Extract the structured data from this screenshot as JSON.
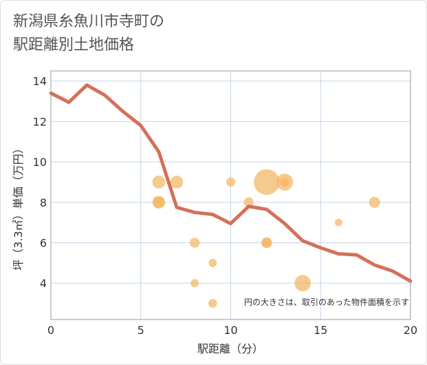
{
  "title_line1": "新潟県糸魚川市寺町の",
  "title_line2": "駅距離別土地価格",
  "chart_data": {
    "type": "scatter",
    "title": "新潟県糸魚川市寺町の駅距離別土地価格",
    "xlabel": "駅距離（分）",
    "ylabel": "坪（3.3㎡）単価（万円）",
    "xlim": [
      0,
      20
    ],
    "ylim": [
      2.2,
      14.5
    ],
    "xticks": [
      0,
      5,
      10,
      15,
      20
    ],
    "yticks": [
      4,
      6,
      8,
      10,
      12,
      14
    ],
    "grid": true,
    "note": "円の大きさは、取引のあった物件面積を示す",
    "bubbles": [
      {
        "x": 6,
        "y": 9,
        "size": 2
      },
      {
        "x": 6,
        "y": 8,
        "size": 2
      },
      {
        "x": 6,
        "y": 8,
        "size": 1.5
      },
      {
        "x": 7,
        "y": 9,
        "size": 2
      },
      {
        "x": 8,
        "y": 6,
        "size": 1.2
      },
      {
        "x": 8,
        "y": 4,
        "size": 0.8
      },
      {
        "x": 9,
        "y": 5,
        "size": 0.8
      },
      {
        "x": 9,
        "y": 3,
        "size": 0.9
      },
      {
        "x": 10,
        "y": 9,
        "size": 1
      },
      {
        "x": 11,
        "y": 8,
        "size": 1.2
      },
      {
        "x": 12,
        "y": 9,
        "size": 8
      },
      {
        "x": 12,
        "y": 6,
        "size": 1.4
      },
      {
        "x": 12,
        "y": 6,
        "size": 1.1
      },
      {
        "x": 13,
        "y": 9,
        "size": 3.5
      },
      {
        "x": 13,
        "y": 9,
        "size": 1
      },
      {
        "x": 14,
        "y": 4,
        "size": 3.2
      },
      {
        "x": 16,
        "y": 7,
        "size": 0.7
      },
      {
        "x": 18,
        "y": 8,
        "size": 1.5
      }
    ],
    "trend_line": {
      "x": [
        0,
        1,
        2,
        3,
        4,
        5,
        6,
        7,
        8,
        9,
        10,
        11,
        12,
        13,
        14,
        15,
        16,
        17,
        18,
        19,
        20
      ],
      "y": [
        13.4,
        12.95,
        13.8,
        13.3,
        12.5,
        11.8,
        10.5,
        7.75,
        7.5,
        7.4,
        6.95,
        7.8,
        7.65,
        6.95,
        6.1,
        5.75,
        5.45,
        5.4,
        4.9,
        4.6,
        4.1
      ]
    },
    "colors": {
      "bubble": "#f2b661",
      "line": "#d4705a",
      "grid": "#c5d5e8",
      "frame": "#999999"
    }
  }
}
